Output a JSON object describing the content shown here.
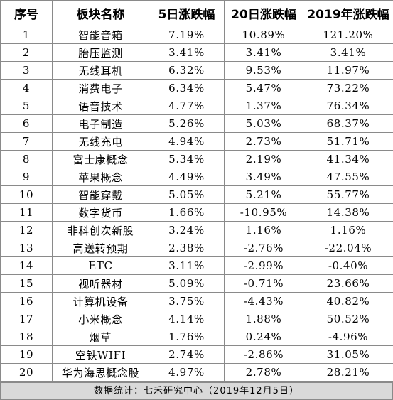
{
  "table": {
    "headers": [
      "序号",
      "板块名称",
      "5日涨跌幅",
      "20日涨跌幅",
      "2019年涨跌幅"
    ],
    "rows": [
      [
        "1",
        "智能音箱",
        "7.19%",
        "10.89%",
        "121.20%"
      ],
      [
        "2",
        "胎压监测",
        "3.41%",
        "3.41%",
        "3.41%"
      ],
      [
        "3",
        "无线耳机",
        "6.32%",
        "9.53%",
        "11.97%"
      ],
      [
        "4",
        "消费电子",
        "6.34%",
        "5.47%",
        "73.22%"
      ],
      [
        "5",
        "语音技术",
        "4.77%",
        "1.37%",
        "76.34%"
      ],
      [
        "6",
        "电子制造",
        "5.26%",
        "5.03%",
        "68.37%"
      ],
      [
        "7",
        "无线充电",
        "4.94%",
        "2.73%",
        "51.71%"
      ],
      [
        "8",
        "富士康概念",
        "5.34%",
        "2.19%",
        "41.34%"
      ],
      [
        "9",
        "苹果概念",
        "4.49%",
        "3.49%",
        "47.55%"
      ],
      [
        "10",
        "智能穿戴",
        "5.05%",
        "5.21%",
        "55.77%"
      ],
      [
        "11",
        "数字货币",
        "1.66%",
        "-10.95%",
        "14.38%"
      ],
      [
        "12",
        "非科创次新股",
        "3.24%",
        "1.16%",
        "1.16%"
      ],
      [
        "13",
        "高送转预期",
        "2.38%",
        "-2.76%",
        "-22.04%"
      ],
      [
        "14",
        "ETC",
        "3.11%",
        "-2.99%",
        "-0.40%"
      ],
      [
        "15",
        "视听器材",
        "5.09%",
        "-0.71%",
        "23.66%"
      ],
      [
        "16",
        "计算机设备",
        "3.75%",
        "-4.43%",
        "40.82%"
      ],
      [
        "17",
        "小米概念",
        "4.14%",
        "1.88%",
        "50.52%"
      ],
      [
        "18",
        "烟草",
        "1.76%",
        "0.24%",
        "-4.96%"
      ],
      [
        "19",
        "空铁WIFI",
        "2.74%",
        "-2.86%",
        "31.05%"
      ],
      [
        "20",
        "华为海思概念股",
        "4.97%",
        "2.78%",
        "28.21%"
      ]
    ]
  },
  "footer": {
    "text": "数据统计：七禾研究中心（2019年12月5日）"
  },
  "colors": {
    "border": "#8a8a8a",
    "footer_bg": "#d9d9d9",
    "text": "#000000"
  }
}
